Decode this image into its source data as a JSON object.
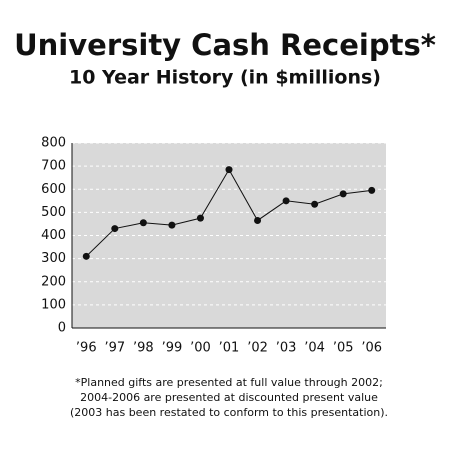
{
  "chart_data": {
    "type": "line",
    "title": "University Cash Receipts*",
    "subtitle": "10 Year History (in $millions)",
    "categories": [
      "’96",
      "’97",
      "’98",
      "’99",
      "’00",
      "’01",
      "’02",
      "’03",
      "’04",
      "’05",
      "’06"
    ],
    "values": [
      310,
      430,
      455,
      445,
      475,
      685,
      465,
      550,
      535,
      580,
      595
    ],
    "color": "#111111",
    "ylim": [
      0,
      800
    ],
    "yticks": [
      0,
      100,
      200,
      300,
      400,
      500,
      600,
      700,
      800
    ],
    "grid": true,
    "footnote": [
      "*Planned gifts are presented at full value through 2002;",
      "2004-2006 are presented at discounted present value",
      "(2003 has been restated to conform to this presentation)."
    ]
  }
}
